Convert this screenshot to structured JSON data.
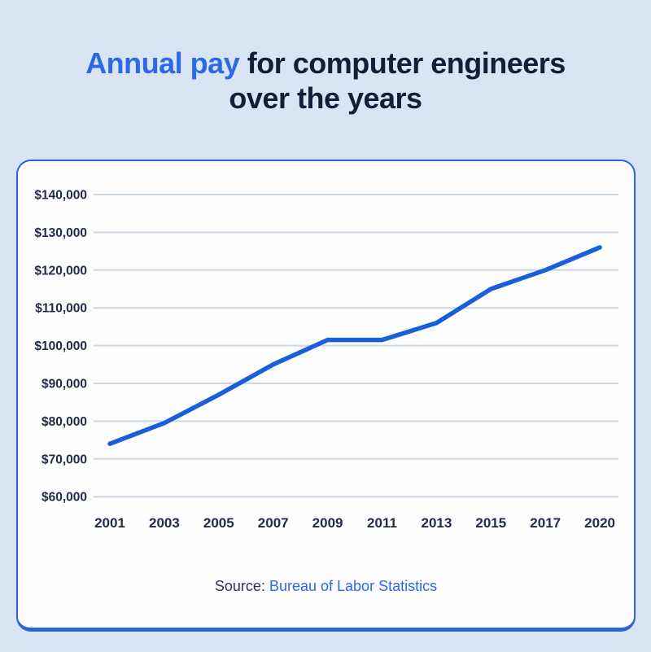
{
  "page": {
    "background_color": "#d9e4f4"
  },
  "title": {
    "highlight": "Annual pay",
    "rest": " for computer engineers over the years",
    "highlight_color": "#2c69e6",
    "text_color": "#141e38"
  },
  "chart_data": {
    "type": "line",
    "title": "Annual pay for computer engineers over the years",
    "categories": [
      "2001",
      "2003",
      "2005",
      "2007",
      "2009",
      "2011",
      "2013",
      "2015",
      "2017",
      "2020"
    ],
    "series": [
      {
        "name": "Annual pay",
        "values": [
          74000,
          79500,
          87000,
          95000,
          101500,
          101500,
          106000,
          115000,
          120000,
          126000
        ]
      }
    ],
    "xlabel": "",
    "ylabel": "",
    "ylim": [
      60000,
      140000
    ],
    "ytick_step": 10000,
    "ytick_labels": [
      "$60,000",
      "$70,000",
      "$80,000",
      "$90,000",
      "$100,000",
      "$110,000",
      "$120,000",
      "$130,000",
      "$140,000"
    ],
    "grid": true,
    "legend": "none",
    "line_color": "#1a5edb",
    "grid_color": "#ccd7e4",
    "label_color": "#222c47"
  },
  "source": {
    "label": "Source:",
    "link": "Bureau of Labor Statistics",
    "link_color": "#2c69e6"
  }
}
